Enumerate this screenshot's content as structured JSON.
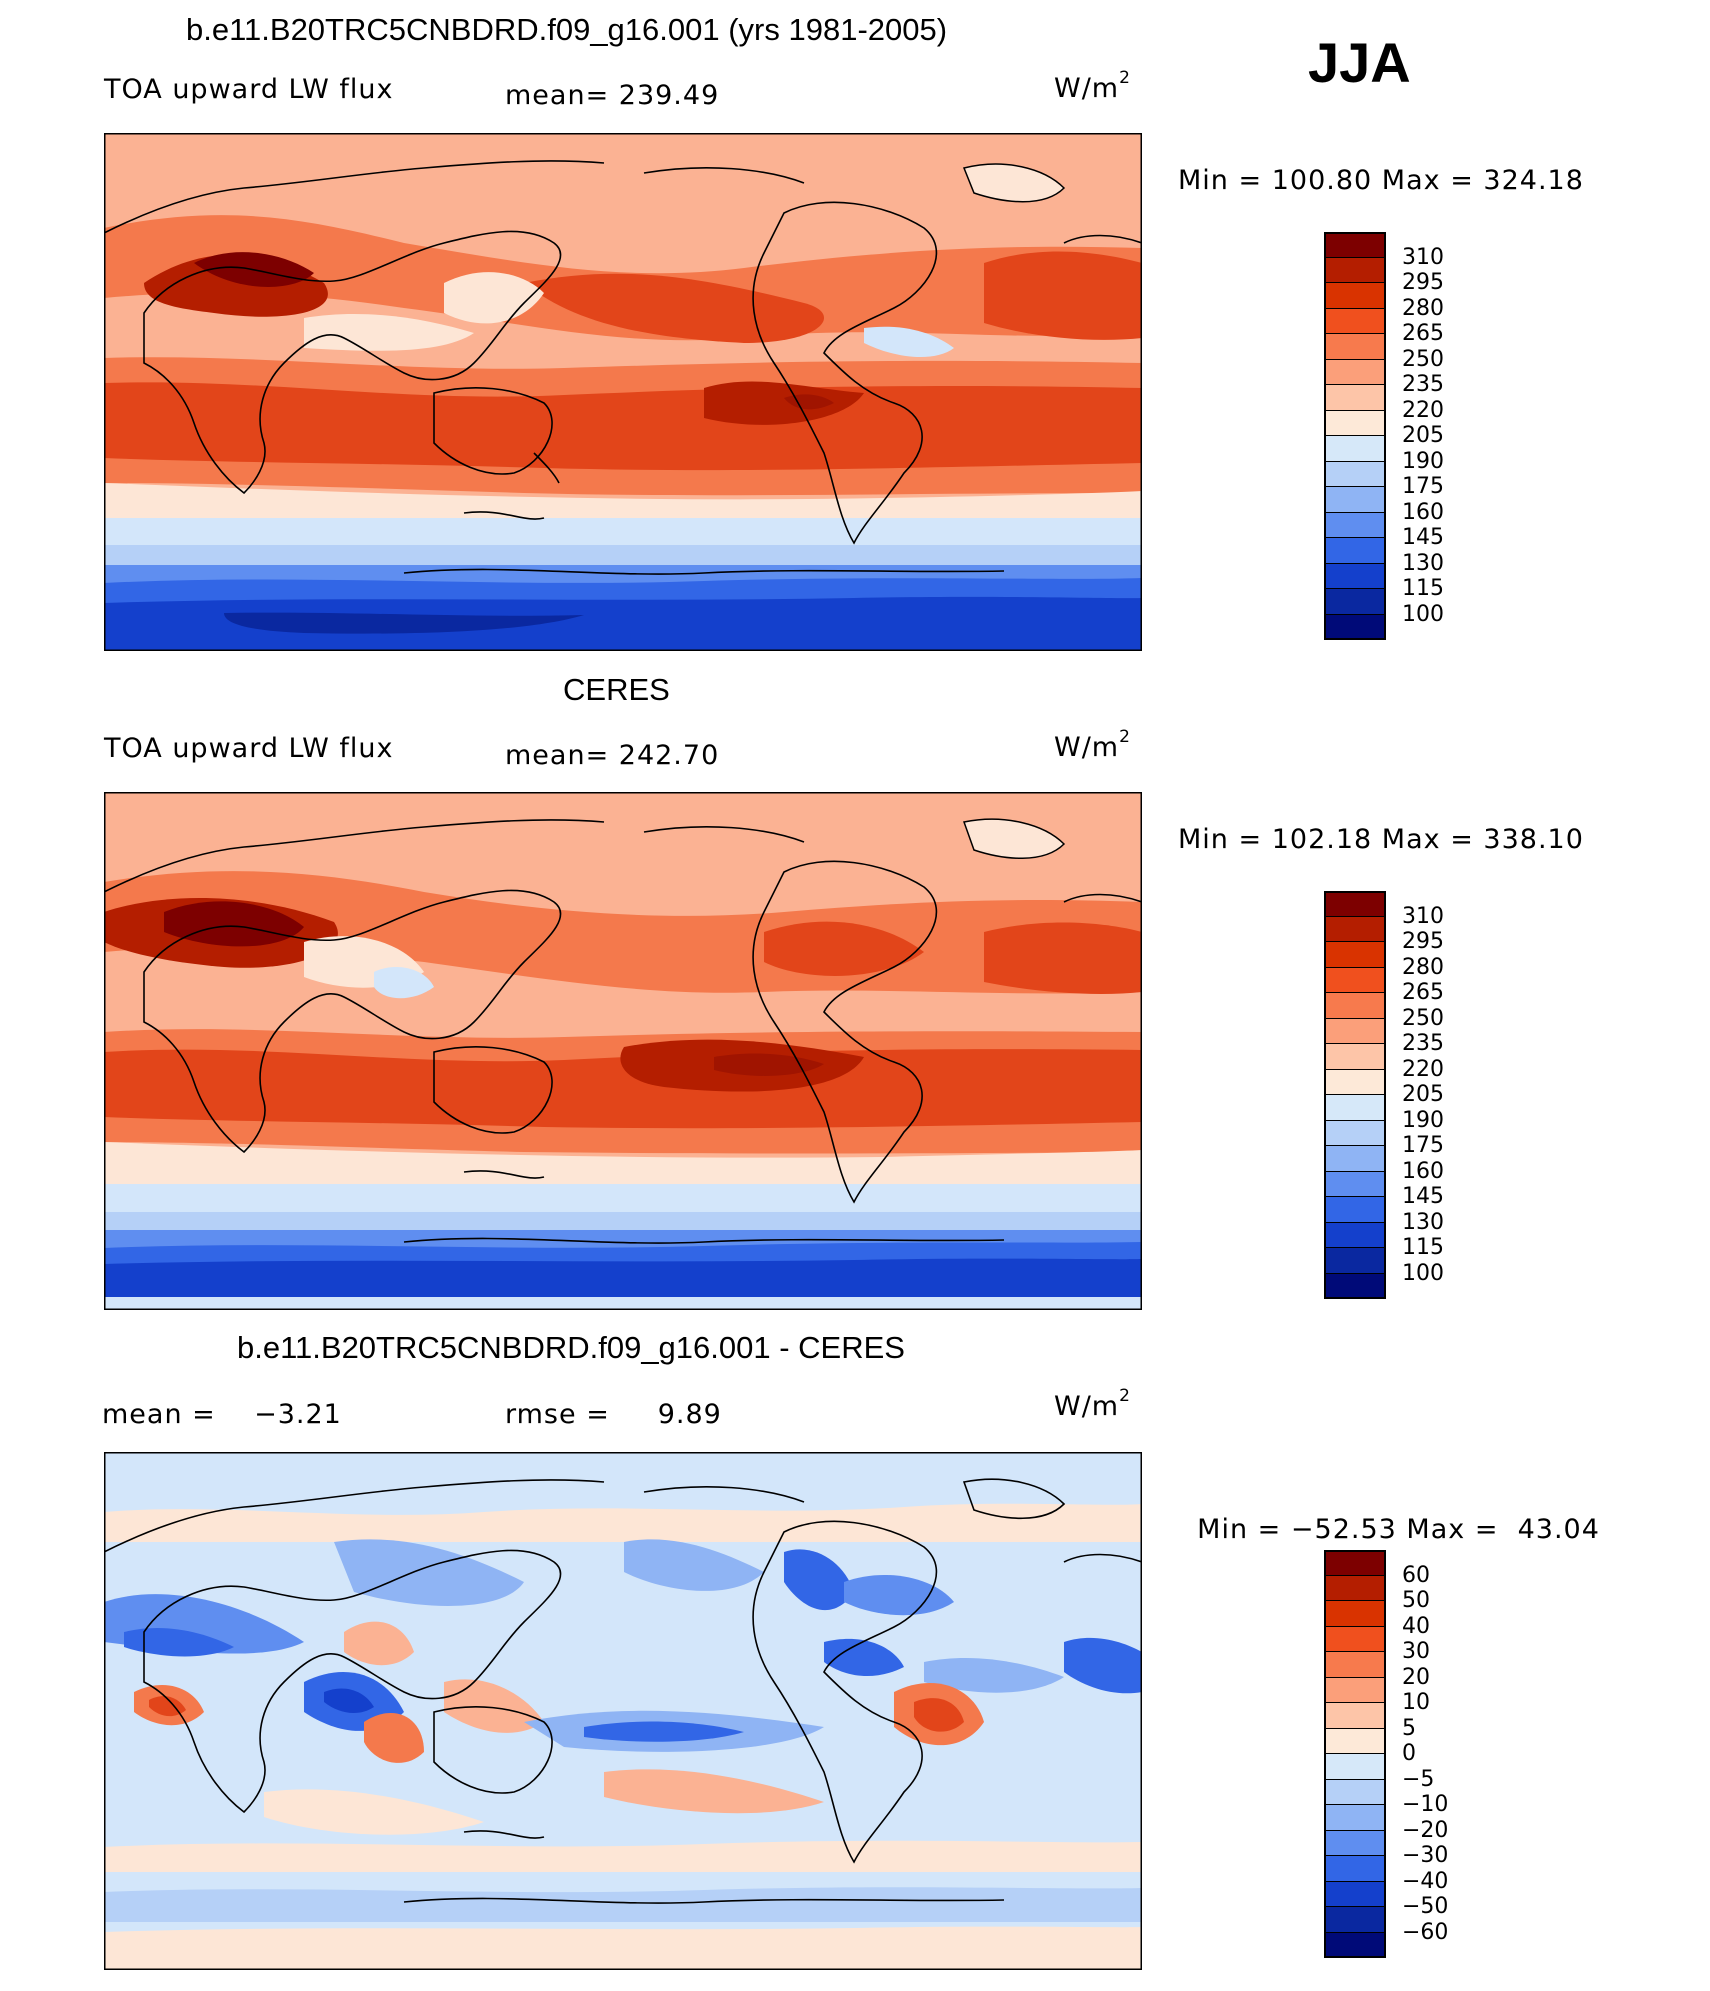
{
  "season": "JJA",
  "panels": [
    {
      "title": "b.e11.B20TRC5CNBDRD.f09_g16.001 (yrs 1981-2005)",
      "variable": "TOA upward LW flux",
      "stat1": "mean= 239.49",
      "stat2": "",
      "unit": "W/m",
      "unit_sup": "2",
      "min_label": "Min",
      "min_value": "100.80",
      "max_label": "Max",
      "max_value": "324.18"
    },
    {
      "title": "CERES",
      "variable": "TOA upward LW flux",
      "stat1": "mean= 242.70",
      "stat2": "",
      "unit": "W/m",
      "unit_sup": "2",
      "min_label": "Min",
      "min_value": "102.18",
      "max_label": "Max",
      "max_value": "338.10"
    },
    {
      "title": "b.e11.B20TRC5CNBDRD.f09_g16.001 - CERES",
      "variable": "",
      "stat1": "mean =    −3.21",
      "stat2": "rmse =     9.89",
      "unit": "W/m",
      "unit_sup": "2",
      "min_label": "Min",
      "min_value": "−52.53",
      "max_label": "Max",
      "max_value": " 43.04"
    }
  ],
  "colorbars": {
    "flux": {
      "labels": [
        "310",
        "295",
        "280",
        "265",
        "250",
        "235",
        "220",
        "205",
        "190",
        "175",
        "160",
        "145",
        "130",
        "115",
        "100"
      ],
      "colors": [
        "#7d0000",
        "#b41e00",
        "#d93300",
        "#f0501e",
        "#f77a4d",
        "#fb9f7a",
        "#fdc5a8",
        "#fde9d8",
        "#d6e8f9",
        "#b5d0f7",
        "#8fb4f4",
        "#5f8ef0",
        "#3266e6",
        "#1440cc",
        "#0a28a0",
        "#000a78"
      ]
    },
    "diff": {
      "labels": [
        "60",
        "50",
        "40",
        "30",
        "20",
        "10",
        "5",
        "0",
        "−5",
        "−10",
        "−20",
        "−30",
        "−40",
        "−50",
        "−60"
      ],
      "colors": [
        "#7d0000",
        "#b41e00",
        "#d93300",
        "#f0501e",
        "#f77a4d",
        "#fb9f7a",
        "#fdc5a8",
        "#fde9d8",
        "#d6e8f9",
        "#b5d0f7",
        "#8fb4f4",
        "#5f8ef0",
        "#3266e6",
        "#1440cc",
        "#0a28a0",
        "#000a78"
      ]
    }
  },
  "map_palette": {
    "land": "#000000",
    "coast": "#000000",
    "warm_dark": "#a01400",
    "warm": "#e2451a",
    "warm_mid": "#f4794c",
    "warm_light": "#fbb293",
    "neutral": "#fde6d6",
    "cool_light": "#d3e6fa",
    "cool": "#8fb4f4",
    "cool_dark": "#2f5fe0",
    "cool_deep": "#0c2fb0"
  }
}
